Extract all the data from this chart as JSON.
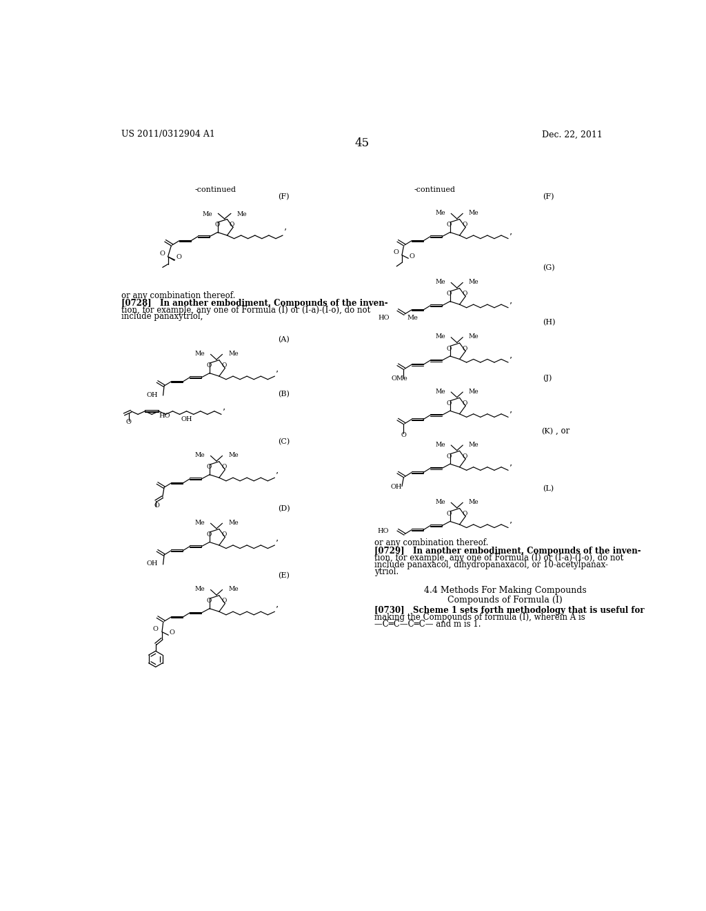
{
  "header_left": "US 2011/0312904 A1",
  "header_right": "Dec. 22, 2011",
  "page_number": "45",
  "continued_left": "-continued",
  "continued_right": "-continued",
  "text_block_1": "or any combination thereof.",
  "text_block_2_line1": "[0728]   In another embodiment, Compounds of the inven-",
  "text_block_2_line2": "tion, for example, any one of Formula (I) or (I-a)-(I-o), do not",
  "text_block_2_line3": "include panaxytriol,",
  "text_block_3": "or any combination thereof.",
  "text_block_4_line1": "[0729]   In another embodiment, Compounds of the inven-",
  "text_block_4_line2": "tion, for example, any one of Formula (I) or (I-a)-(I-o), do not",
  "text_block_4_line3": "include panaxacol, dihydropanaxacol, or 10-acetylpanax-",
  "text_block_4_line4": "ytriol.",
  "text_block_5": "4.4 Methods For Making Compounds",
  "text_block_6": "Compounds of Formula (I)",
  "text_block_7_line1": "[0730]   Scheme 1 sets forth methodology that is useful for",
  "text_block_7_line2": "making the Compounds of formula (I), wherein A is",
  "text_block_7_line3": "—C═C—C═C— and m is 1.",
  "background_color": "#ffffff",
  "text_color": "#000000",
  "font_size_header": 9,
  "font_size_body": 8.5,
  "font_size_page_num": 12,
  "font_size_label": 8,
  "font_size_section": 9
}
